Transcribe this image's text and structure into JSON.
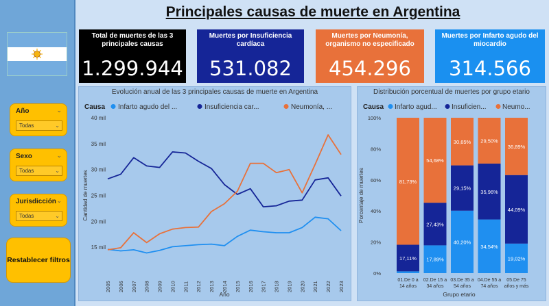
{
  "title": "Principales causas de muerte en Argentina",
  "kpis": [
    {
      "label": "Total de muertes de las 3 principales causas",
      "value": "1.299.944",
      "color": "#000000"
    },
    {
      "label": "Muertes por Insuficiencia cardíaca",
      "value": "531.082",
      "color": "#152597"
    },
    {
      "label": "Muertes por Neumonía, organismo no especificado",
      "value": "454.296",
      "color": "#e8713a"
    },
    {
      "label": "Muertes por Infarto agudo del miocardio",
      "value": "314.566",
      "color": "#1a90f0"
    }
  ],
  "filters": [
    {
      "label": "Año",
      "value": "Todas"
    },
    {
      "label": "Sexo",
      "value": "Todas"
    },
    {
      "label": "Jurisdicción",
      "value": "Todas"
    }
  ],
  "reset_label": "Restablecer filtros",
  "colors": {
    "infarto": "#1f8ff0",
    "insuficiencia": "#152597",
    "neumonia": "#e8713a"
  },
  "chart_data": [
    {
      "type": "line",
      "title": "Evolución anual de las 3 principales causas de muerte en Argentina",
      "legend_title": "Causa",
      "legend_entries": [
        "Infarto agudo del ...",
        "Insuficiencia car...",
        "Neumonía, ..."
      ],
      "xlabel": "Año",
      "ylabel": "Cantidad de muertes",
      "x": [
        "2005",
        "2006",
        "2007",
        "2008",
        "2009",
        "2010",
        "2011",
        "2012",
        "2013",
        "2014",
        "2015",
        "2016",
        "2017",
        "2018",
        "2019",
        "2020",
        "2021",
        "2022",
        "2023"
      ],
      "yticks": [
        "15 mil",
        "20 mil",
        "25 mil",
        "30 mil",
        "35 mil",
        "40 mil"
      ],
      "ylim": [
        10000,
        40000
      ],
      "series": [
        {
          "key": "infarto",
          "values": [
            14600,
            14300,
            14500,
            13900,
            14400,
            15100,
            15300,
            15500,
            15600,
            15300,
            17100,
            18300,
            18000,
            17800,
            17800,
            18800,
            20800,
            20500,
            18200
          ]
        },
        {
          "key": "insuficiencia",
          "values": [
            28200,
            29100,
            32300,
            30700,
            30400,
            33400,
            33200,
            31600,
            30200,
            27100,
            25200,
            26300,
            22800,
            23000,
            23900,
            24100,
            28000,
            28400,
            24900
          ]
        },
        {
          "key": "neumonia",
          "values": [
            14500,
            14900,
            17800,
            15900,
            17600,
            18500,
            18800,
            18900,
            21900,
            23400,
            25800,
            31200,
            31200,
            29400,
            30000,
            25500,
            31000,
            36700,
            32900
          ]
        }
      ],
      "legend_placement": "top",
      "grid": false
    },
    {
      "type": "bar",
      "stacked": true,
      "title": "Distribución porcentual de muertes por grupo etario",
      "legend_title": "Causa",
      "legend_entries": [
        "Infarto agud...",
        "Insuficien...",
        "Neumo..."
      ],
      "xlabel": "Grupo etario",
      "ylabel": "Porcentaje de muertes",
      "yticks": [
        "0%",
        "20%",
        "40%",
        "60%",
        "80%",
        "100%"
      ],
      "ylim": [
        0,
        100
      ],
      "categories": [
        [
          "01.De 0 a",
          "14 años"
        ],
        [
          "02.De 15 a",
          "34 años"
        ],
        [
          "03.De 35 a",
          "54 años"
        ],
        [
          "04.De 55 a",
          "74 años"
        ],
        [
          "05.De 75",
          "años y más"
        ]
      ],
      "series": [
        {
          "key": "infarto",
          "values": [
            1.16,
            17.89,
            40.2,
            34.54,
            19.02
          ],
          "labels": [
            "",
            "17,89%",
            "40,20%",
            "34,54%",
            "19,02%"
          ]
        },
        {
          "key": "insuficiencia",
          "values": [
            17.11,
            27.43,
            29.15,
            35.96,
            44.09
          ],
          "labels": [
            "17,11%",
            "27,43%",
            "29,15%",
            "35,96%",
            "44,09%"
          ]
        },
        {
          "key": "neumonia",
          "values": [
            81.73,
            54.68,
            30.65,
            29.5,
            36.89
          ],
          "labels": [
            "81,73%",
            "54,68%",
            "30,65%",
            "29,50%",
            "36,89%"
          ]
        }
      ],
      "legend_placement": "top"
    }
  ]
}
